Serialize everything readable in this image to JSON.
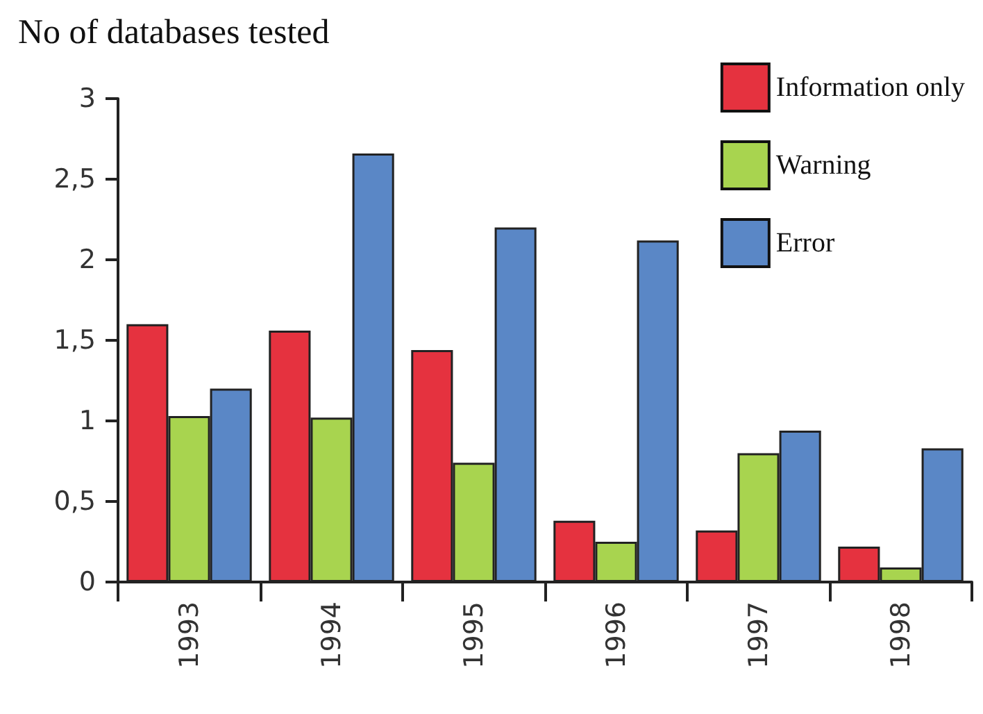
{
  "chart_data": {
    "type": "bar",
    "title": "No of databases tested",
    "categories": [
      "1993",
      "1994",
      "1995",
      "1996",
      "1997",
      "1998"
    ],
    "series": [
      {
        "name": "Information only",
        "color": "#e5323f",
        "values": [
          1.6,
          1.56,
          1.44,
          0.38,
          0.32,
          0.22
        ]
      },
      {
        "name": "Warning",
        "color": "#a8d44f",
        "values": [
          1.03,
          1.02,
          0.74,
          0.25,
          0.8,
          0.09
        ]
      },
      {
        "name": "Error",
        "color": "#5a87c6",
        "values": [
          1.2,
          2.66,
          2.2,
          2.12,
          0.94,
          0.83
        ]
      }
    ],
    "ylim": [
      0,
      3
    ],
    "yticks": [
      0,
      {
        "value": 0.5,
        "label": "0,5"
      },
      1,
      {
        "value": 1.5,
        "label": "1,5"
      },
      2,
      {
        "value": 2.5,
        "label": "2,5"
      },
      3
    ],
    "grid": false,
    "legend": "top right"
  }
}
